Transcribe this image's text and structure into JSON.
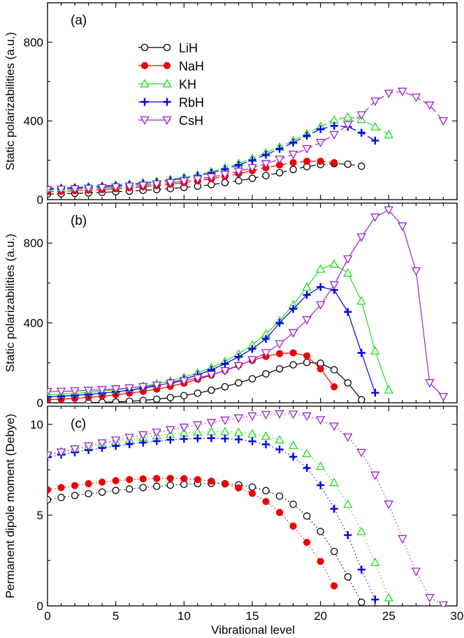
{
  "figure": {
    "x_label": "Vibrational level",
    "x_ticks": [
      0,
      5,
      10,
      15,
      20,
      25,
      30
    ]
  },
  "legend": [
    {
      "name": "LiH",
      "color": "#000000",
      "marker": "circle-open"
    },
    {
      "name": "NaH",
      "color": "#ee0000",
      "marker": "circle-filled"
    },
    {
      "name": "KH",
      "color": "#22dd22",
      "marker": "triangle-up"
    },
    {
      "name": "RbH",
      "color": "#0000ee",
      "marker": "plus"
    },
    {
      "name": "CsH",
      "color": "#9922cc",
      "marker": "triangle-down"
    }
  ],
  "chart_data": [
    {
      "panel": "(a)",
      "type": "line",
      "line_style": "dashed",
      "ylabel": "Static polarizabilities (a.u.)",
      "xlim": [
        0,
        30
      ],
      "ylim": [
        0,
        1000
      ],
      "yticks": [
        0,
        400,
        800
      ],
      "series": [
        {
          "name": "LiH",
          "x": [
            0,
            1,
            2,
            3,
            4,
            5,
            6,
            7,
            8,
            9,
            10,
            11,
            12,
            13,
            14,
            15,
            16,
            17,
            18,
            19,
            20,
            21,
            22,
            23
          ],
          "values": [
            28,
            30,
            32,
            34,
            37,
            40,
            43,
            47,
            51,
            56,
            62,
            68,
            76,
            86,
            96,
            108,
            122,
            137,
            153,
            168,
            178,
            183,
            180,
            170
          ]
        },
        {
          "name": "NaH",
          "x": [
            0,
            1,
            2,
            3,
            4,
            5,
            6,
            7,
            8,
            9,
            10,
            11,
            12,
            13,
            14,
            15,
            16,
            17,
            18,
            19,
            20,
            21
          ],
          "values": [
            40,
            42,
            45,
            48,
            51,
            55,
            60,
            65,
            71,
            78,
            86,
            95,
            106,
            118,
            132,
            147,
            162,
            176,
            188,
            195,
            195,
            188
          ]
        },
        {
          "name": "KH",
          "x": [
            0,
            1,
            2,
            3,
            4,
            5,
            6,
            7,
            8,
            9,
            10,
            11,
            12,
            13,
            14,
            15,
            16,
            17,
            18,
            19,
            20,
            21,
            22,
            23,
            24,
            25
          ],
          "values": [
            58,
            60,
            63,
            66,
            70,
            75,
            80,
            87,
            94,
            103,
            114,
            127,
            143,
            162,
            184,
            210,
            238,
            268,
            300,
            335,
            372,
            405,
            420,
            408,
            370,
            330
          ]
        },
        {
          "name": "RbH",
          "x": [
            0,
            1,
            2,
            3,
            4,
            5,
            6,
            7,
            8,
            9,
            10,
            11,
            12,
            13,
            14,
            15,
            16,
            17,
            18,
            19,
            20,
            21,
            22,
            23,
            24
          ],
          "values": [
            55,
            57,
            60,
            63,
            67,
            71,
            76,
            82,
            89,
            98,
            108,
            121,
            136,
            155,
            176,
            200,
            228,
            258,
            290,
            325,
            358,
            375,
            370,
            340,
            300
          ]
        },
        {
          "name": "CsH",
          "x": [
            0,
            1,
            2,
            3,
            4,
            5,
            6,
            7,
            8,
            9,
            10,
            11,
            12,
            13,
            14,
            15,
            16,
            17,
            18,
            19,
            20,
            21,
            22,
            23,
            24,
            25,
            26,
            27,
            28,
            29
          ],
          "values": [
            50,
            52,
            54,
            57,
            60,
            64,
            68,
            73,
            79,
            86,
            94,
            104,
            115,
            128,
            144,
            162,
            182,
            205,
            230,
            258,
            290,
            330,
            380,
            430,
            500,
            540,
            550,
            520,
            480,
            400
          ]
        }
      ]
    },
    {
      "panel": "(b)",
      "type": "line",
      "line_style": "solid",
      "ylabel": "Static polarizabilities (a.u.)",
      "xlim": [
        0,
        30
      ],
      "ylim": [
        0,
        1000
      ],
      "yticks": [
        0,
        400,
        800
      ],
      "series": [
        {
          "name": "LiH",
          "x": [
            3,
            4,
            5,
            6,
            7,
            8,
            9,
            10,
            11,
            12,
            13,
            14,
            15,
            16,
            17,
            18,
            19,
            20,
            21,
            22,
            23
          ],
          "values": [
            0,
            2,
            4,
            8,
            12,
            18,
            26,
            36,
            48,
            63,
            80,
            100,
            120,
            145,
            170,
            190,
            202,
            198,
            165,
            100,
            15
          ]
        },
        {
          "name": "NaH",
          "x": [
            0,
            1,
            2,
            3,
            4,
            5,
            6,
            7,
            8,
            9,
            10,
            11,
            12,
            13,
            14,
            15,
            16,
            17,
            18,
            19,
            20,
            21
          ],
          "values": [
            15,
            18,
            22,
            27,
            33,
            40,
            48,
            57,
            68,
            82,
            98,
            117,
            138,
            162,
            188,
            212,
            232,
            246,
            250,
            235,
            170,
            80
          ]
        },
        {
          "name": "KH",
          "x": [
            0,
            1,
            2,
            3,
            4,
            5,
            6,
            7,
            8,
            9,
            10,
            11,
            12,
            13,
            14,
            15,
            16,
            17,
            18,
            19,
            20,
            21,
            22,
            23,
            24,
            25
          ],
          "values": [
            40,
            43,
            47,
            52,
            58,
            65,
            73,
            83,
            95,
            110,
            128,
            150,
            176,
            207,
            245,
            290,
            345,
            410,
            490,
            580,
            670,
            695,
            650,
            510,
            260,
            65
          ]
        },
        {
          "name": "RbH",
          "x": [
            0,
            1,
            2,
            3,
            4,
            5,
            6,
            7,
            8,
            9,
            10,
            11,
            12,
            13,
            14,
            15,
            16,
            17,
            18,
            19,
            20,
            21,
            22,
            23,
            24
          ],
          "values": [
            30,
            33,
            37,
            42,
            48,
            55,
            63,
            73,
            85,
            100,
            118,
            140,
            165,
            195,
            230,
            270,
            320,
            400,
            470,
            540,
            580,
            565,
            455,
            250,
            50
          ]
        },
        {
          "name": "CsH",
          "x": [
            0,
            1,
            2,
            3,
            4,
            5,
            6,
            7,
            8,
            9,
            10,
            11,
            12,
            13,
            14,
            15,
            16,
            17,
            18,
            19,
            20,
            21,
            22,
            23,
            24,
            25,
            26,
            27,
            28,
            29
          ],
          "values": [
            55,
            57,
            59,
            62,
            65,
            69,
            74,
            80,
            88,
            98,
            110,
            124,
            140,
            160,
            185,
            215,
            250,
            295,
            350,
            415,
            490,
            590,
            720,
            830,
            930,
            965,
            885,
            660,
            100,
            30
          ]
        }
      ]
    },
    {
      "panel": "(c)",
      "type": "line",
      "line_style": "dotted",
      "ylabel": "Permanent dipole moment (Debye)",
      "xlabel": "Vibrational level",
      "xlim": [
        0,
        30
      ],
      "ylim": [
        0,
        11
      ],
      "yticks": [
        0,
        5,
        10
      ],
      "series": [
        {
          "name": "LiH",
          "x": [
            0,
            1,
            2,
            3,
            4,
            5,
            6,
            7,
            8,
            9,
            10,
            11,
            12,
            13,
            14,
            15,
            16,
            17,
            18,
            19,
            20,
            21,
            22,
            23
          ],
          "values": [
            5.85,
            5.97,
            6.08,
            6.18,
            6.27,
            6.36,
            6.44,
            6.52,
            6.59,
            6.65,
            6.7,
            6.74,
            6.75,
            6.73,
            6.67,
            6.55,
            6.35,
            6.05,
            5.6,
            4.95,
            4.1,
            3.0,
            1.6,
            0.2
          ]
        },
        {
          "name": "NaH",
          "x": [
            0,
            1,
            2,
            3,
            4,
            5,
            6,
            7,
            8,
            9,
            10,
            11,
            12,
            13,
            14,
            15,
            16,
            17,
            18,
            19,
            20,
            21
          ],
          "values": [
            6.4,
            6.52,
            6.63,
            6.73,
            6.82,
            6.9,
            6.96,
            7.0,
            7.02,
            7.03,
            7.01,
            6.96,
            6.87,
            6.72,
            6.5,
            6.2,
            5.75,
            5.15,
            4.4,
            3.5,
            2.45,
            1.1
          ]
        },
        {
          "name": "KH",
          "x": [
            0,
            1,
            2,
            3,
            4,
            5,
            6,
            7,
            8,
            9,
            10,
            11,
            12,
            13,
            14,
            15,
            16,
            17,
            18,
            19,
            20,
            21,
            22,
            23,
            24,
            25
          ],
          "values": [
            8.35,
            8.5,
            8.65,
            8.8,
            8.93,
            9.05,
            9.17,
            9.28,
            9.38,
            9.46,
            9.53,
            9.58,
            9.6,
            9.6,
            9.56,
            9.48,
            9.35,
            9.15,
            8.85,
            8.4,
            7.7,
            6.8,
            5.6,
            4.1,
            2.4,
            0.45
          ]
        },
        {
          "name": "RbH",
          "x": [
            0,
            1,
            2,
            3,
            4,
            5,
            6,
            7,
            8,
            9,
            10,
            11,
            12,
            13,
            14,
            15,
            16,
            17,
            18,
            19,
            20,
            21,
            22,
            23,
            24
          ],
          "values": [
            8.2,
            8.33,
            8.46,
            8.58,
            8.7,
            8.81,
            8.91,
            9.0,
            9.08,
            9.15,
            9.2,
            9.23,
            9.24,
            9.22,
            9.17,
            9.07,
            8.9,
            8.62,
            8.22,
            7.6,
            6.65,
            5.35,
            3.9,
            2.0,
            0.35
          ]
        },
        {
          "name": "CsH",
          "x": [
            0,
            1,
            2,
            3,
            4,
            5,
            6,
            7,
            8,
            9,
            10,
            11,
            12,
            13,
            14,
            15,
            16,
            17,
            18,
            19,
            20,
            21,
            22,
            23,
            24,
            25,
            26,
            27,
            28,
            29
          ],
          "values": [
            8.3,
            8.47,
            8.64,
            8.81,
            8.97,
            9.13,
            9.28,
            9.42,
            9.56,
            9.7,
            9.84,
            9.97,
            10.1,
            10.23,
            10.35,
            10.46,
            10.54,
            10.58,
            10.56,
            10.46,
            10.25,
            9.9,
            9.3,
            8.45,
            7.2,
            5.6,
            3.7,
            1.9,
            0.45,
            0.05
          ]
        }
      ]
    }
  ]
}
